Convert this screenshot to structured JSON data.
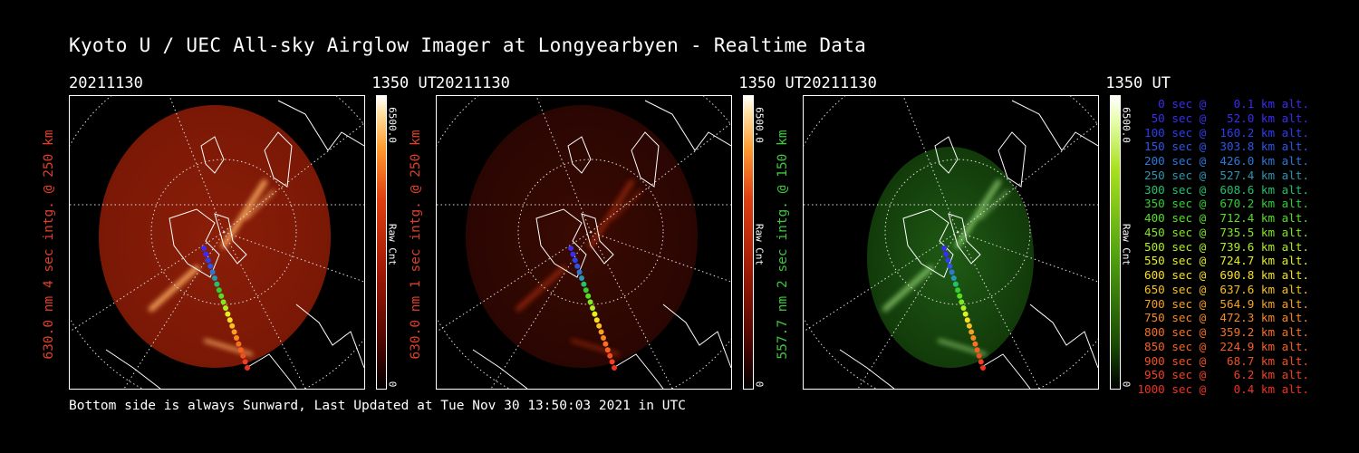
{
  "title": "Kyoto U / UEC All-sky Airglow Imager at Longyearbyen - Realtime Data",
  "footer": "Bottom side is always Sunward, Last Updated at Tue Nov 30 13:50:03 2021 in UTC",
  "panels": [
    {
      "date": "20211130",
      "time": "1350 UT",
      "ylabel": "630.0 nm 4 sec intg. @ 250 km",
      "ylabel_color": "#e0402a",
      "cbar_max": "6500.0",
      "cbar_label": "Raw Cnt",
      "cbar_min": "0",
      "colormap": "red",
      "brightness": "bright"
    },
    {
      "date": "20211130",
      "time": "1350 UT",
      "ylabel": "630.0 nm 1 sec intg. @ 250 km",
      "ylabel_color": "#e0402a",
      "cbar_max": "6500.0",
      "cbar_label": "Raw Cnt",
      "cbar_min": "0",
      "colormap": "red",
      "brightness": "dim"
    },
    {
      "date": "20211130",
      "time": "1350 UT",
      "ylabel": "557.7 nm 2 sec intg. @ 150 km",
      "ylabel_color": "#3ec93e",
      "cbar_max": "6500.0",
      "cbar_label": "Raw Cnt",
      "cbar_min": "0",
      "colormap": "green",
      "brightness": "dim"
    }
  ],
  "legend": [
    {
      "text": "   0 sec @    0.1 km alt.",
      "color": "#3a2cf0"
    },
    {
      "text": "  50 sec @   52.0 km alt.",
      "color": "#3a2cf0"
    },
    {
      "text": " 100 sec @  160.2 km alt.",
      "color": "#2d3df0"
    },
    {
      "text": " 150 sec @  303.8 km alt.",
      "color": "#2d55e8"
    },
    {
      "text": " 200 sec @  426.0 km alt.",
      "color": "#2b78d8"
    },
    {
      "text": " 250 sec @  527.4 km alt.",
      "color": "#2b96b0"
    },
    {
      "text": " 300 sec @  608.6 km alt.",
      "color": "#22c070"
    },
    {
      "text": " 350 sec @  670.2 km alt.",
      "color": "#30d030"
    },
    {
      "text": " 400 sec @  712.4 km alt.",
      "color": "#55e025"
    },
    {
      "text": " 450 sec @  735.5 km alt.",
      "color": "#80e820"
    },
    {
      "text": " 500 sec @  739.6 km alt.",
      "color": "#b0f020"
    },
    {
      "text": " 550 sec @  724.7 km alt.",
      "color": "#e0f020"
    },
    {
      "text": " 600 sec @  690.8 km alt.",
      "color": "#f8e020"
    },
    {
      "text": " 650 sec @  637.6 km alt.",
      "color": "#f8c020"
    },
    {
      "text": " 700 sec @  564.9 km alt.",
      "color": "#f8a020"
    },
    {
      "text": " 750 sec @  472.3 km alt.",
      "color": "#f88820"
    },
    {
      "text": " 800 sec @  359.2 km alt.",
      "color": "#f87020"
    },
    {
      "text": " 850 sec @  224.9 km alt.",
      "color": "#f86020"
    },
    {
      "text": " 900 sec @   68.7 km alt.",
      "color": "#f05020"
    },
    {
      "text": " 950 sec @    6.2 km alt.",
      "color": "#f04020"
    },
    {
      "text": "1000 sec @    0.4 km alt.",
      "color": "#f03020"
    }
  ]
}
